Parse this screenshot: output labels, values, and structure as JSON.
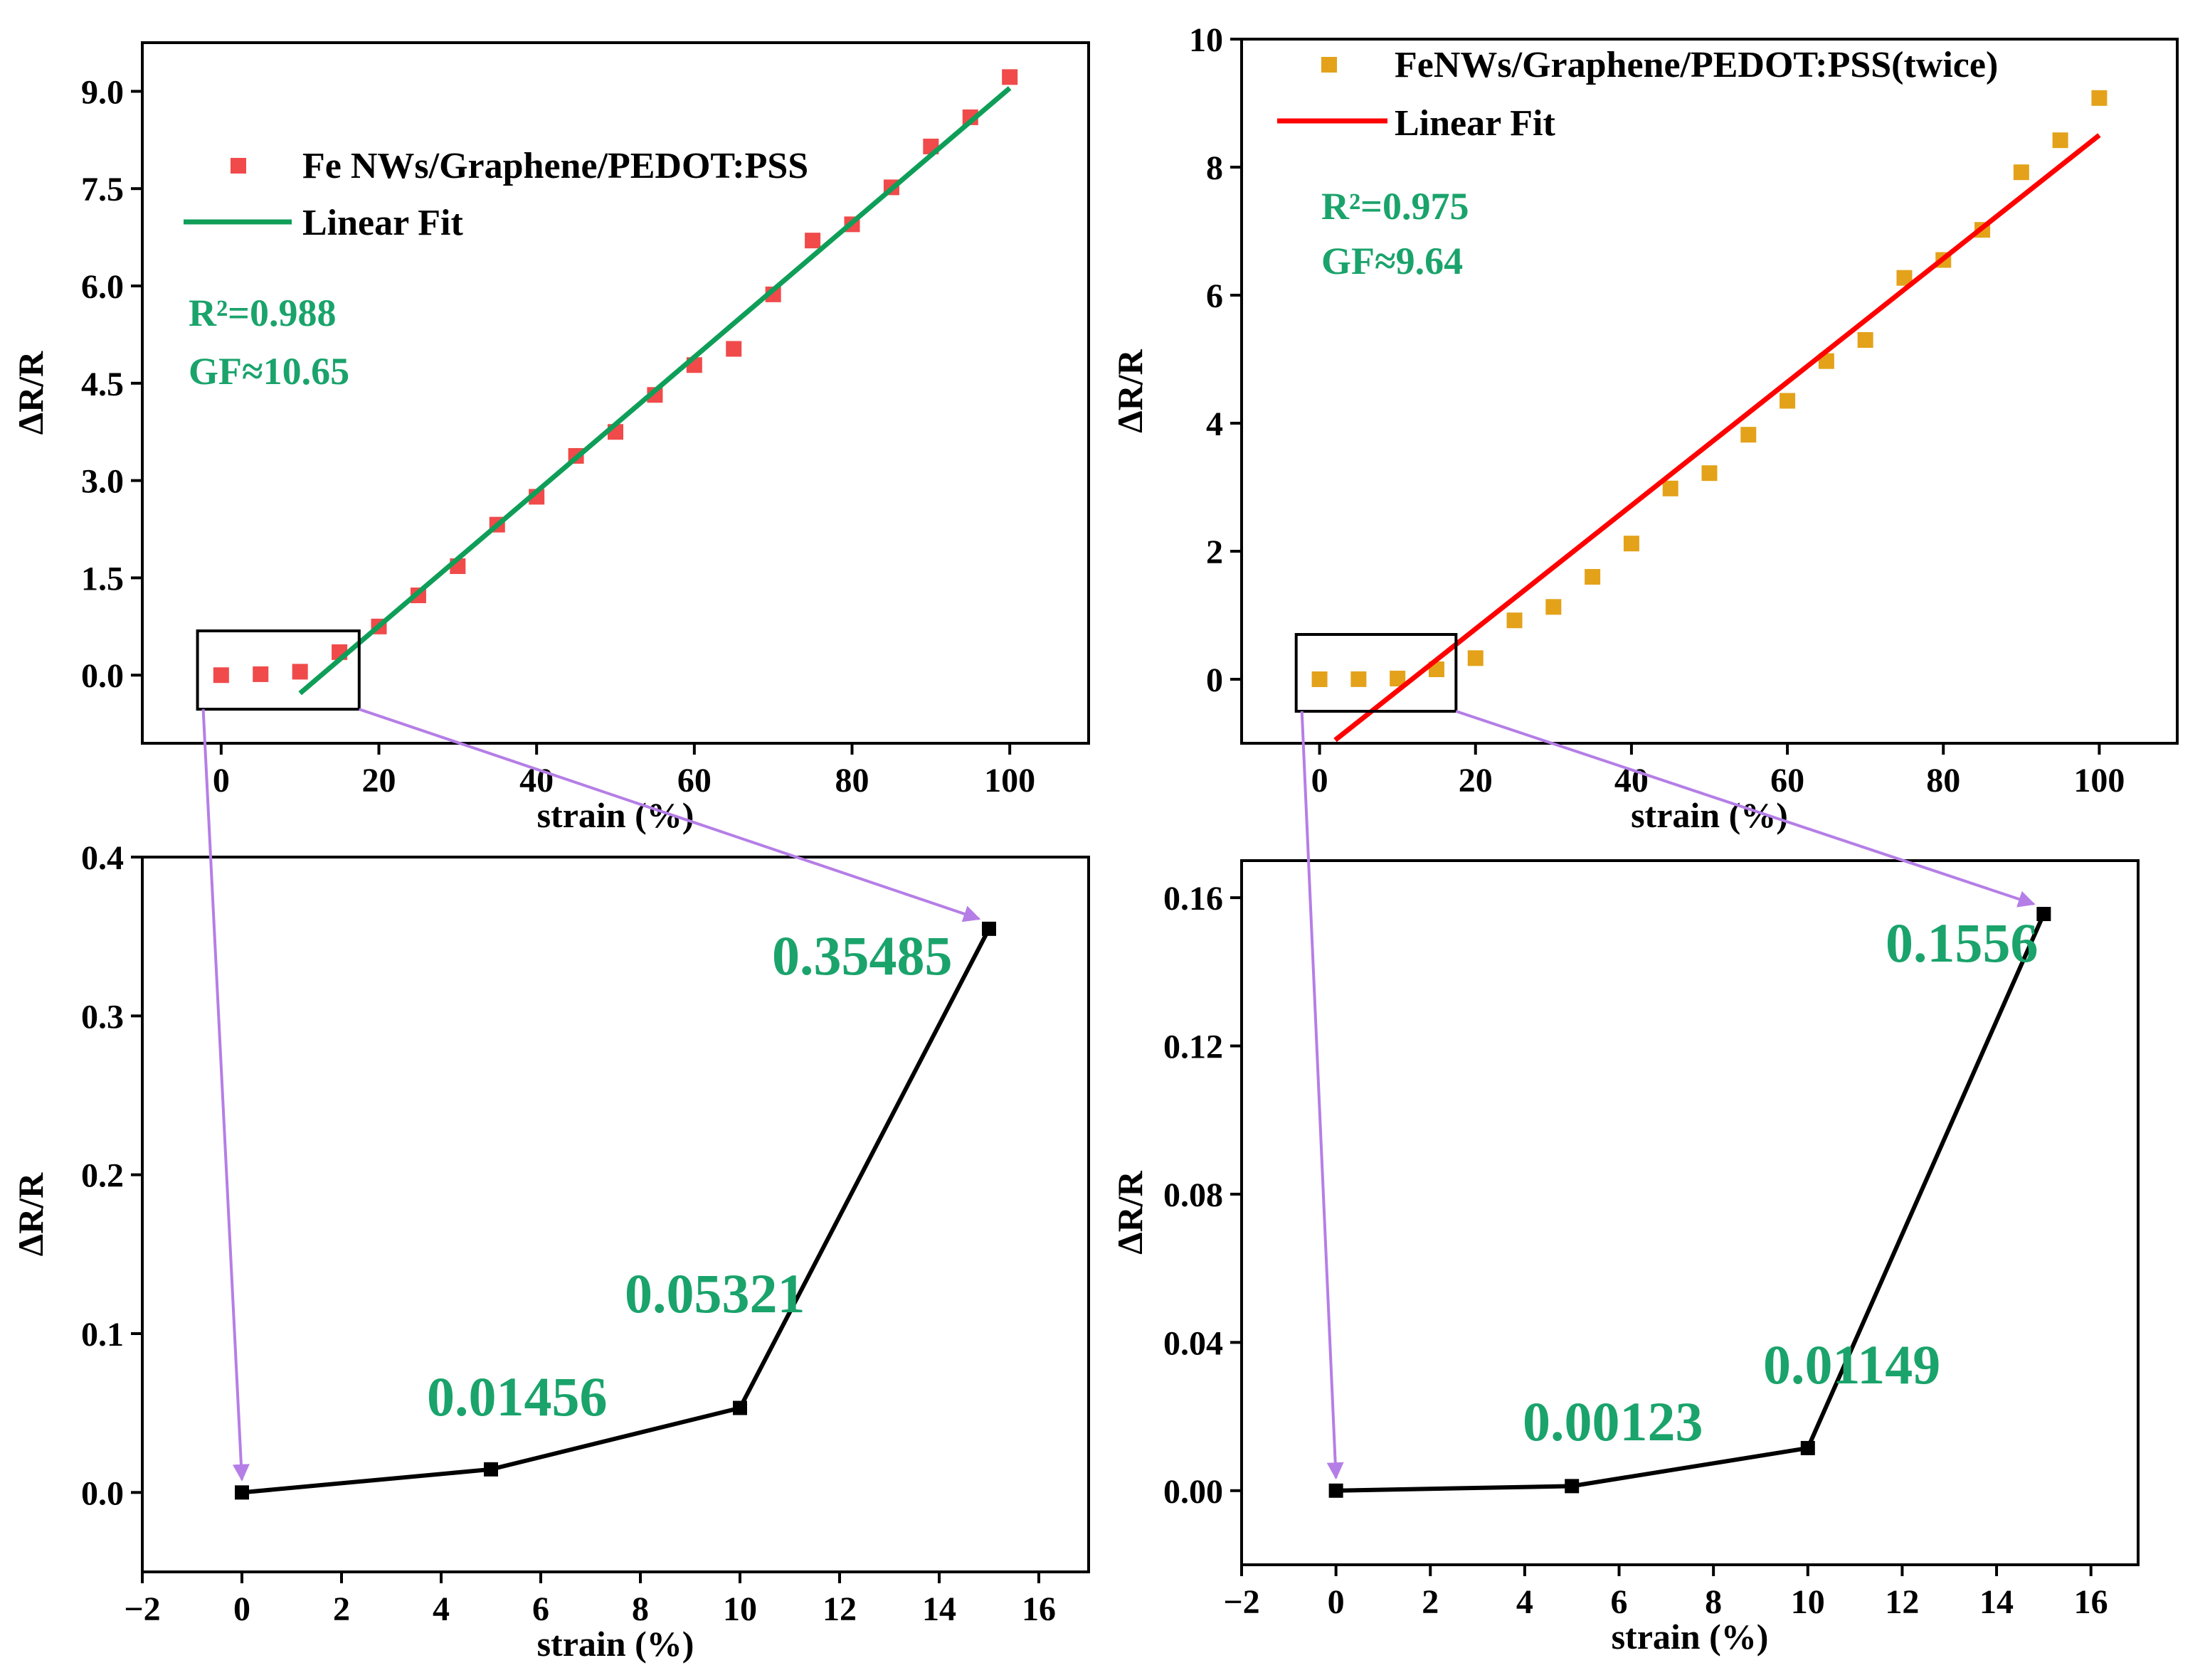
{
  "colors": {
    "green": "#1aa36b",
    "fit_green": "#0e9e58",
    "red_marker": "#f04a4a",
    "orange_marker": "#e3a21a",
    "red_fit": "#ff0000",
    "black": "#000000",
    "arrow": "#b57ee6"
  },
  "chart_data": [
    {
      "id": "top-left",
      "type": "scatter",
      "xlabel": "strain (%)",
      "ylabel": "ΔR/R",
      "xlim": [
        -10,
        110
      ],
      "ylim": [
        -1.05,
        9.75
      ],
      "xticks": [
        0,
        20,
        40,
        60,
        80,
        100
      ],
      "xtick_labels": [
        "0",
        "20",
        "40",
        "60",
        "80",
        "100"
      ],
      "yticks": [
        0,
        1.5,
        3,
        4.5,
        6,
        7.5,
        9
      ],
      "ytick_labels": [
        "0.0",
        "1.5",
        "3.0",
        "4.5",
        "6.0",
        "7.5",
        "9.0"
      ],
      "legend_position": "top-left",
      "series": [
        {
          "name": "Fe NWs/Graphene/PEDOT:PSS",
          "kind": "markers",
          "color": "#f04a4a",
          "x": [
            0,
            5,
            10,
            15,
            20,
            25,
            30,
            35,
            40,
            45,
            50,
            55,
            60,
            65,
            70,
            75,
            80,
            85,
            90,
            95,
            100
          ],
          "y": [
            0,
            0.01456,
            0.05321,
            0.35485,
            0.75,
            1.23,
            1.68,
            2.32,
            2.75,
            3.38,
            3.75,
            4.32,
            4.78,
            5.03,
            5.87,
            6.7,
            6.95,
            7.52,
            8.15,
            8.6,
            9.22
          ]
        },
        {
          "name": "Linear Fit",
          "kind": "line",
          "color": "#0e9e58",
          "x": [
            10,
            100
          ],
          "y": [
            -0.28,
            9.05
          ]
        }
      ],
      "annotations": [
        {
          "text": "R²=0.988",
          "color": "#1aa36b"
        },
        {
          "text": "GF≈10.65",
          "color": "#1aa36b"
        }
      ]
    },
    {
      "id": "top-right",
      "type": "scatter",
      "xlabel": "strain (%)",
      "ylabel": "ΔR/R",
      "xlim": [
        -10,
        110
      ],
      "ylim": [
        -1,
        10
      ],
      "xticks": [
        0,
        20,
        40,
        60,
        80,
        100
      ],
      "xtick_labels": [
        "0",
        "20",
        "40",
        "60",
        "80",
        "100"
      ],
      "yticks": [
        0,
        2,
        4,
        6,
        8,
        10
      ],
      "ytick_labels": [
        "0",
        "2",
        "4",
        "6",
        "8",
        "10"
      ],
      "legend_position": "top",
      "series": [
        {
          "name": "FeNWs/Graphene/PEDOT:PSS(twice)",
          "kind": "markers",
          "color": "#e3a21a",
          "x": [
            0,
            5,
            10,
            15,
            20,
            25,
            30,
            35,
            40,
            45,
            50,
            55,
            60,
            65,
            70,
            75,
            80,
            85,
            90,
            95,
            100
          ],
          "y": [
            0,
            0.00123,
            0.01149,
            0.1556,
            0.33,
            0.92,
            1.13,
            1.6,
            2.12,
            2.98,
            3.22,
            3.82,
            4.35,
            4.97,
            5.3,
            6.27,
            6.55,
            7.02,
            7.92,
            8.42,
            9.08
          ]
        },
        {
          "name": "Linear Fit",
          "kind": "line",
          "color": "#ff0000",
          "x": [
            2,
            100
          ],
          "y": [
            -0.95,
            8.5
          ]
        }
      ],
      "annotations": [
        {
          "text": "R²=0.975",
          "color": "#1aa36b"
        },
        {
          "text": "GF≈9.64",
          "color": "#1aa36b"
        }
      ]
    },
    {
      "id": "bottom-left",
      "type": "line",
      "xlabel": "strain (%)",
      "ylabel": "ΔR/R",
      "xlim": [
        -2,
        17
      ],
      "ylim": [
        -0.05,
        0.4
      ],
      "xticks": [
        -2,
        0,
        2,
        4,
        6,
        8,
        10,
        12,
        14,
        16
      ],
      "xtick_labels": [
        "−2",
        "0",
        "2",
        "4",
        "6",
        "8",
        "10",
        "12",
        "14",
        "16"
      ],
      "yticks": [
        0,
        0.1,
        0.2,
        0.3,
        0.4
      ],
      "ytick_labels": [
        "0.0",
        "0.1",
        "0.2",
        "0.3",
        "0.4"
      ],
      "series": [
        {
          "kind": "line+markers",
          "color": "#000000",
          "x": [
            0,
            5,
            10,
            15
          ],
          "y": [
            0,
            0.01456,
            0.05321,
            0.35485
          ]
        }
      ],
      "data_labels": [
        "0.01456",
        "0.05321",
        "0.35485"
      ]
    },
    {
      "id": "bottom-right",
      "type": "line",
      "xlabel": "strain (%)",
      "ylabel": "ΔR/R",
      "xlim": [
        -2,
        17
      ],
      "ylim": [
        -0.02,
        0.17
      ],
      "xticks": [
        -2,
        0,
        2,
        4,
        6,
        8,
        10,
        12,
        14,
        16
      ],
      "xtick_labels": [
        "−2",
        "0",
        "2",
        "4",
        "6",
        "8",
        "10",
        "12",
        "14",
        "16"
      ],
      "yticks": [
        0,
        0.04,
        0.08,
        0.12,
        0.16
      ],
      "ytick_labels": [
        "0.00",
        "0.04",
        "0.08",
        "0.12",
        "0.16"
      ],
      "series": [
        {
          "kind": "line+markers",
          "color": "#000000",
          "x": [
            0,
            5,
            10,
            15
          ],
          "y": [
            0,
            0.00123,
            0.01149,
            0.1556
          ]
        }
      ],
      "data_labels": [
        "0.00123",
        "0.01149",
        "0.1556"
      ]
    }
  ]
}
